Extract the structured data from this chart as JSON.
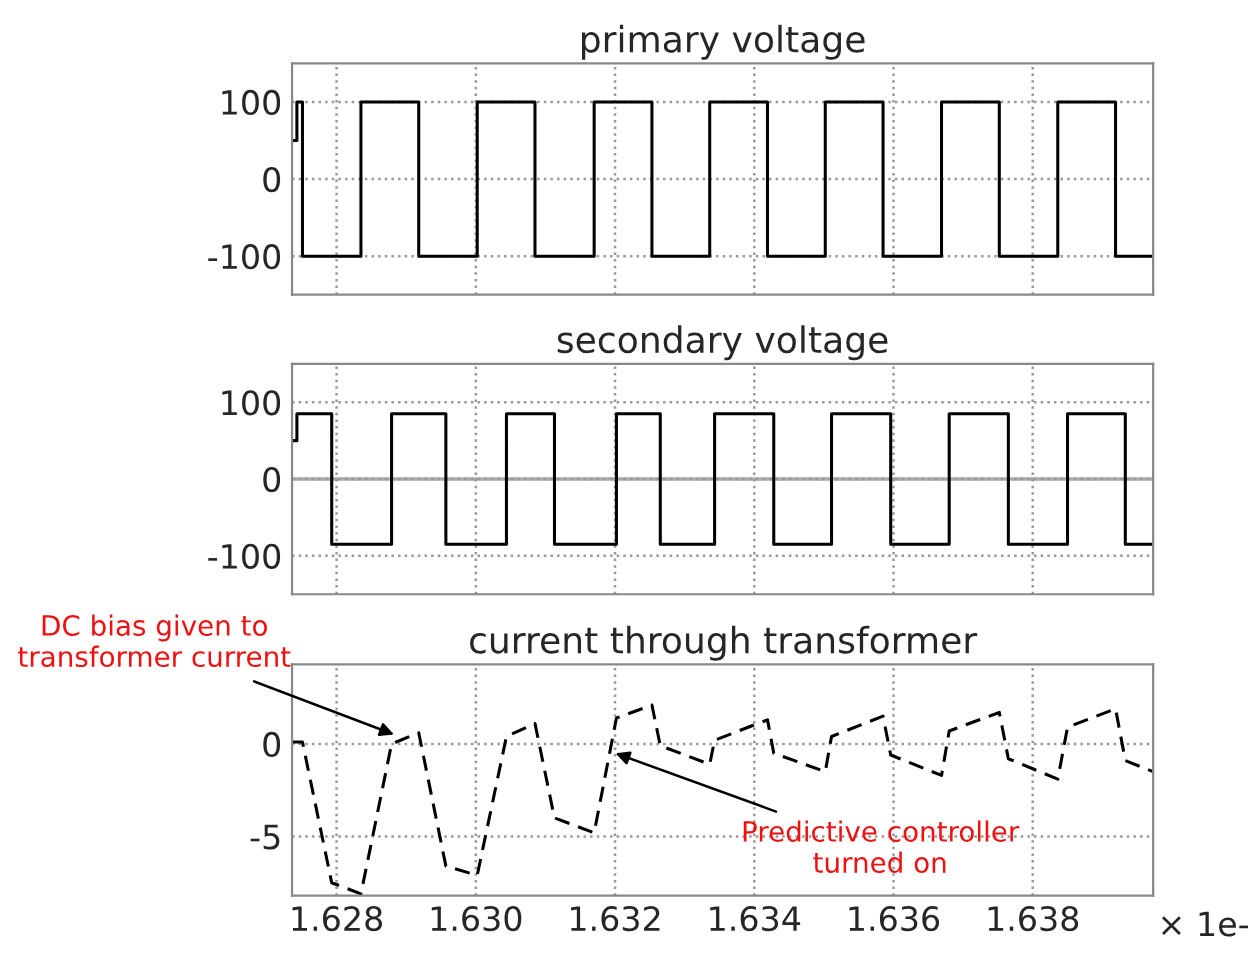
{
  "chart_data": [
    {
      "type": "step",
      "title": "primary voltage",
      "x": [
        1.62736,
        1.62743,
        1.62751,
        1.62835,
        1.62918,
        1.63002,
        1.63085,
        1.6317,
        1.63253,
        1.63336,
        1.63419,
        1.63502,
        1.63585,
        1.63669,
        1.63752,
        1.63836,
        1.63919,
        1.63973
      ],
      "series": [
        {
          "color": "#000000",
          "values": [
            50,
            100,
            -100,
            100,
            -100,
            100,
            -100,
            100,
            -100,
            100,
            -100,
            100,
            -100,
            100,
            -100,
            100,
            -100,
            -100
          ]
        }
      ],
      "xlim": [
        1.62736,
        1.63973
      ],
      "ylim": [
        -150,
        150
      ],
      "xticks": [
        1.628,
        1.63,
        1.632,
        1.634,
        1.636,
        1.638
      ],
      "yticks": [
        -100,
        0,
        100
      ],
      "grid": true,
      "tick_labels": "y"
    },
    {
      "type": "step",
      "title": "secondary voltage",
      "x": [
        1.62736,
        1.62743,
        1.62793,
        1.62879,
        1.62957,
        1.63044,
        1.63113,
        1.63202,
        1.63265,
        1.63343,
        1.63428,
        1.63511,
        1.63596,
        1.6368,
        1.63765,
        1.6385,
        1.63933,
        1.63973
      ],
      "series": [
        {
          "color": "#000000",
          "values": [
            50,
            85,
            -85,
            85,
            -85,
            85,
            -85,
            85,
            -85,
            85,
            -85,
            85,
            -85,
            85,
            -85,
            85,
            -85,
            -85
          ]
        }
      ],
      "xlim": [
        1.62736,
        1.63973
      ],
      "ylim": [
        -150,
        150
      ],
      "xticks": [
        1.628,
        1.63,
        1.632,
        1.634,
        1.636,
        1.638
      ],
      "yticks": [
        -100,
        0,
        100
      ],
      "grid": true,
      "tick_labels": "y",
      "ref_lines": [
        {
          "axis": "y",
          "value": 0,
          "color": "#aaaaaa"
        }
      ]
    },
    {
      "type": "line",
      "title": "current through transformer",
      "x": [
        1.62736,
        1.62751,
        1.62793,
        1.62835,
        1.62879,
        1.62918,
        1.62957,
        1.63002,
        1.63044,
        1.63085,
        1.63113,
        1.6317,
        1.63202,
        1.63253,
        1.63265,
        1.63336,
        1.63343,
        1.63419,
        1.63428,
        1.63502,
        1.63511,
        1.63585,
        1.63596,
        1.63669,
        1.6368,
        1.63752,
        1.63765,
        1.63836,
        1.6385,
        1.63919,
        1.63933,
        1.63973
      ],
      "series": [
        {
          "color": "#000000",
          "values": [
            0.1,
            0.1,
            -7.5,
            -8.1,
            0,
            0.6,
            -6.6,
            -7.1,
            0.4,
            1.1,
            -4,
            -4.8,
            1.4,
            2.1,
            -0.1,
            -1.1,
            0.2,
            1.3,
            -0.5,
            -1.5,
            0.4,
            1.5,
            -0.6,
            -1.7,
            0.7,
            1.7,
            -0.8,
            -1.9,
            0.9,
            1.9,
            -0.9,
            -1.5
          ]
        }
      ],
      "line_style": "dashed",
      "xlim": [
        1.62736,
        1.63973
      ],
      "ylim": [
        -8.2,
        4.3
      ],
      "xticks": [
        1.628,
        {
          "value": 1.63,
          "label": "1.630"
        },
        1.632,
        1.634,
        1.636,
        1.638
      ],
      "xlabel": "× 1e-",
      "yticks": [
        -5,
        0
      ],
      "grid": true,
      "annotations": [
        {
          "text": "DC bias given to\ntransformer current",
          "x": 1.6289,
          "y": 0.4
        },
        {
          "text": "Predictive controller\nturned on",
          "x": 1.63193,
          "y": -0.4
        }
      ]
    }
  ]
}
